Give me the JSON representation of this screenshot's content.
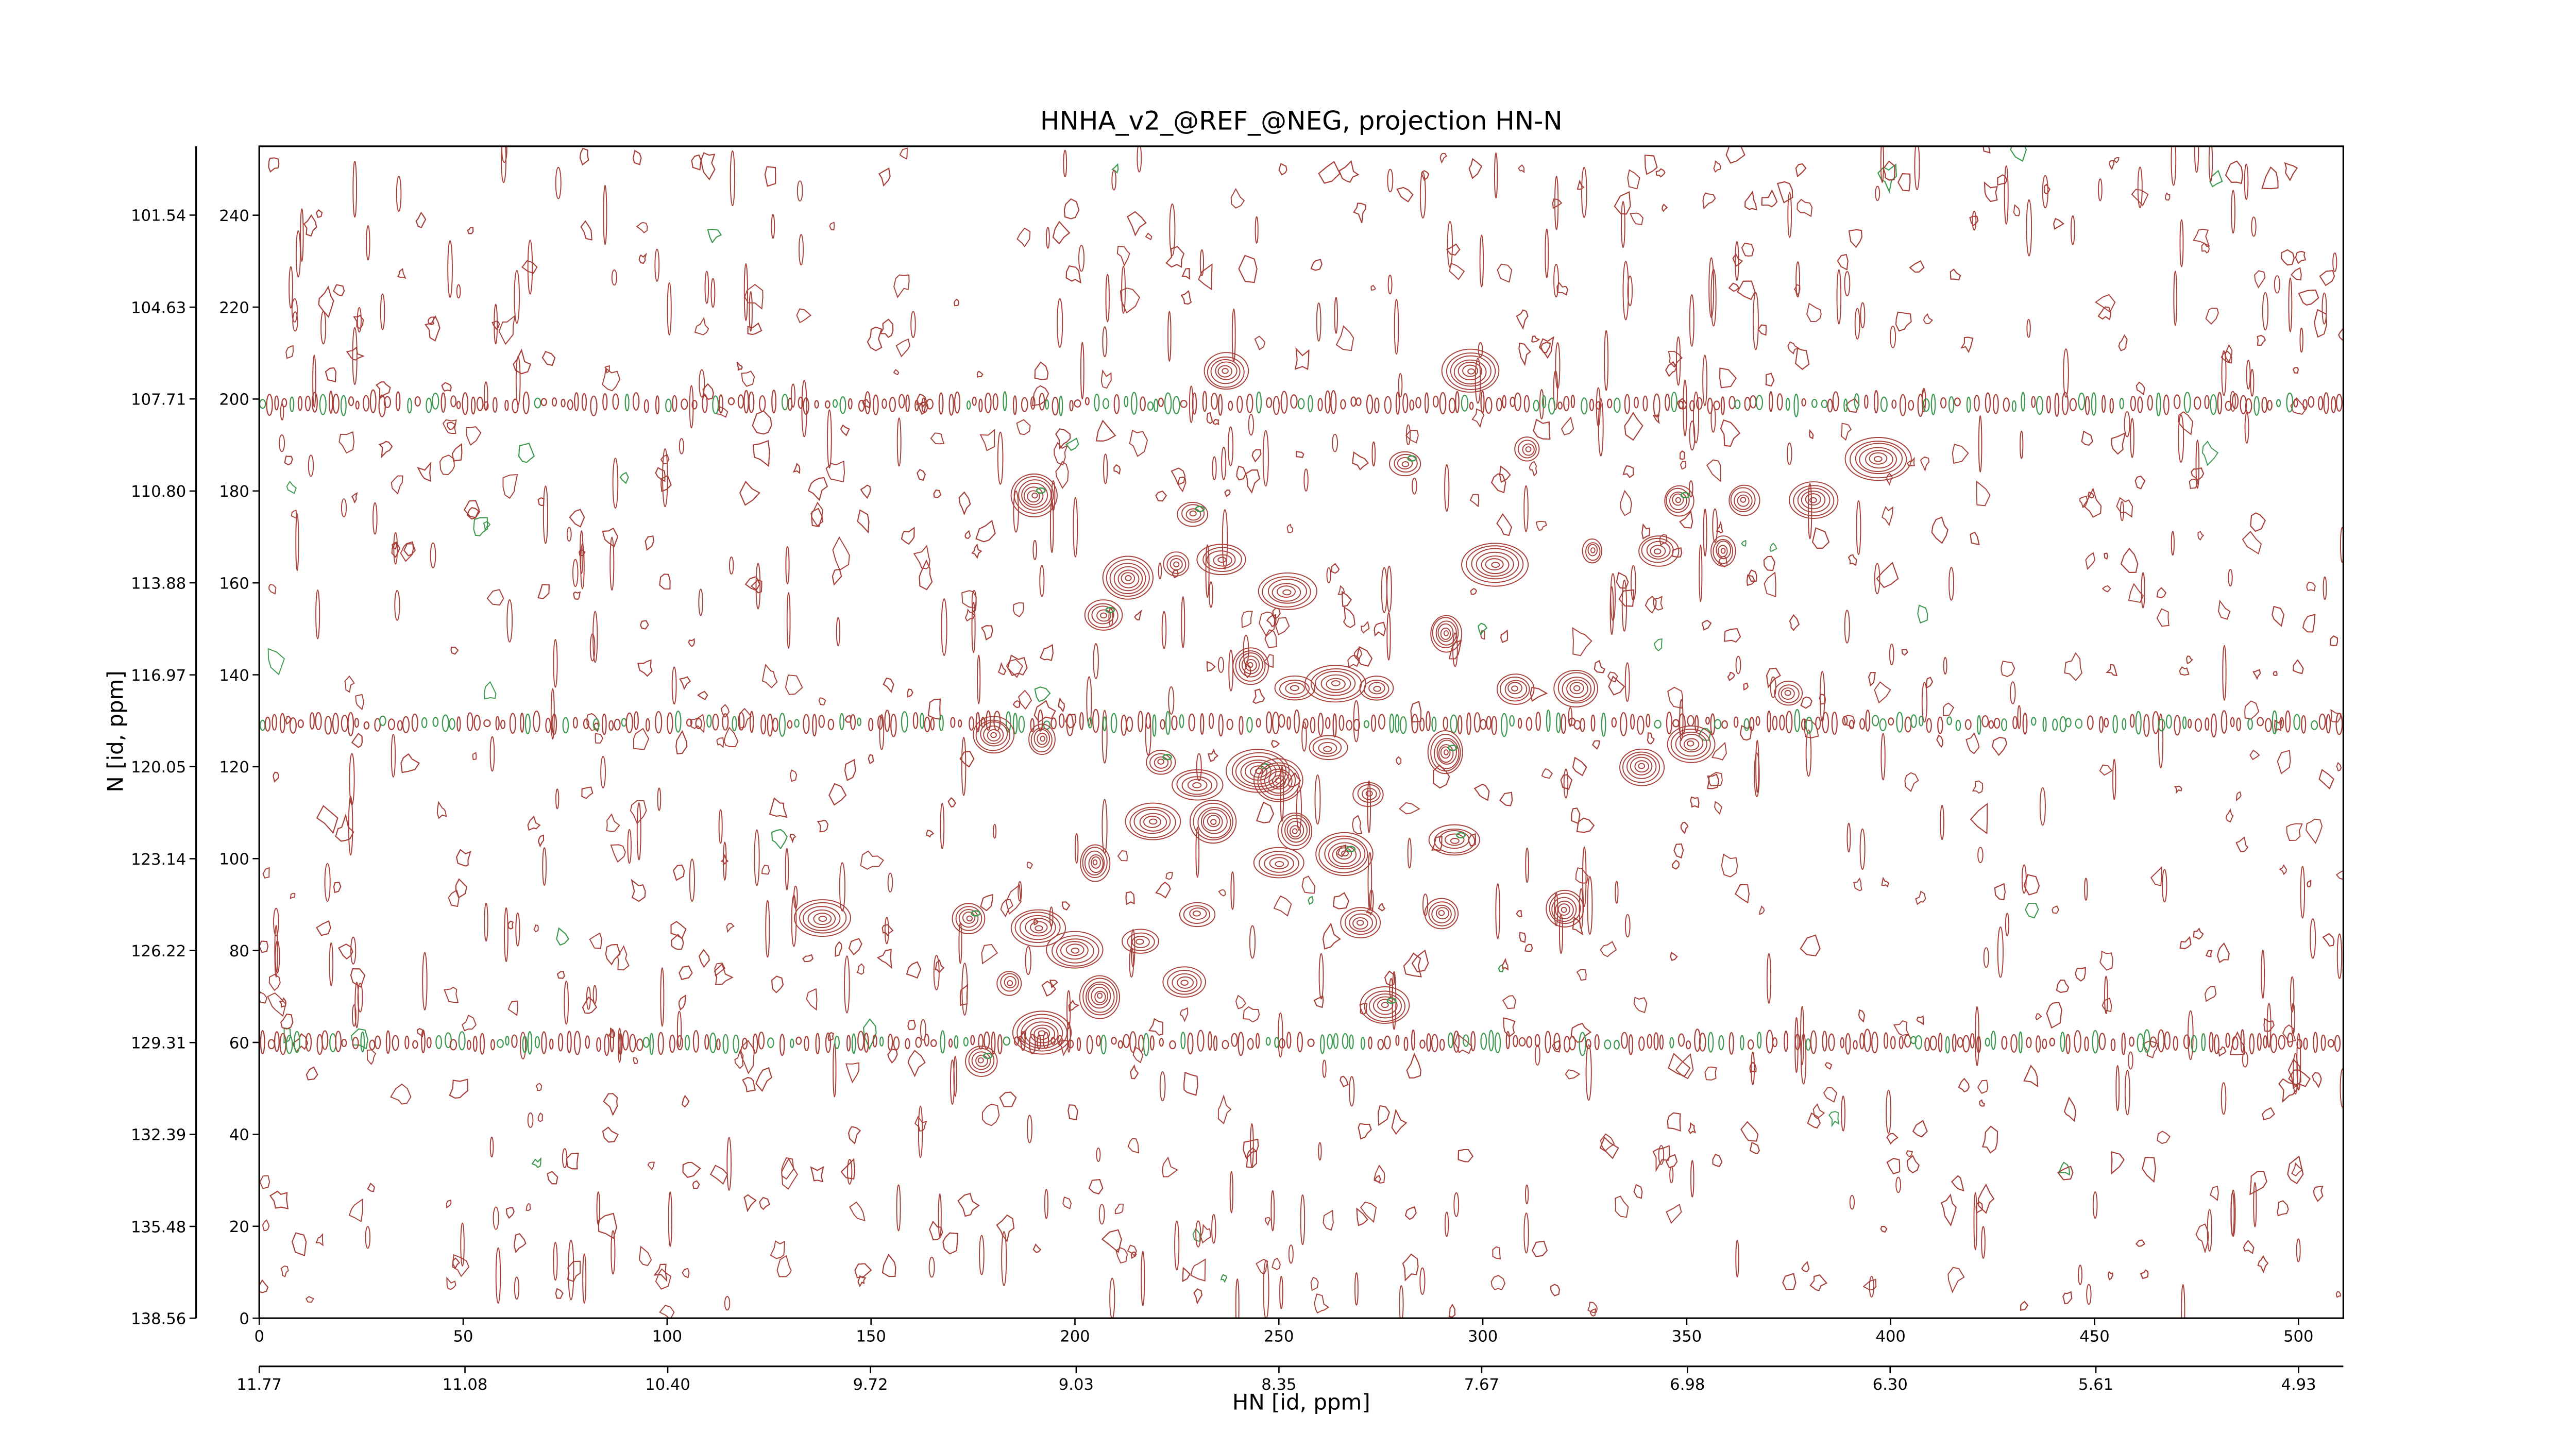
{
  "chart_data": {
    "type": "contour",
    "title": "HNHA_v2_@REF_@NEG, projection HN-N",
    "xlabel": "HN [id, ppm]",
    "ylabel": "N [id, ppm]",
    "xlim": [
      0,
      511
    ],
    "ylim": [
      0,
      255
    ],
    "xticks": [
      0,
      50,
      100,
      150,
      200,
      250,
      300,
      350,
      400,
      450,
      500
    ],
    "yticks": [
      0,
      20,
      40,
      60,
      80,
      100,
      120,
      140,
      160,
      180,
      200,
      220,
      240
    ],
    "x2lim": [
      11.77,
      4.78
    ],
    "x2ticks": [
      11.77,
      11.08,
      {
        "value": 10.4,
        "label": "10.40"
      },
      9.72,
      9.03,
      8.35,
      7.67,
      6.98,
      {
        "value": 6.3,
        "label": "6.30"
      },
      5.61,
      4.93
    ],
    "y2lim": [
      138.56,
      99.23
    ],
    "y2ticks": [
      138.56,
      135.48,
      132.39,
      129.31,
      126.22,
      123.14,
      120.05,
      116.97,
      113.88,
      {
        "value": 110.8,
        "label": "110.80"
      },
      107.71,
      104.63,
      101.54
    ],
    "colors": {
      "positive": "#a8403a",
      "negative": "#3d9a50"
    },
    "ridges": [
      60,
      129.5,
      199
    ],
    "peaks": [
      {
        "x": 190,
        "y": 179
      },
      {
        "x": 213,
        "y": 161
      },
      {
        "x": 225,
        "y": 164
      },
      {
        "x": 236,
        "y": 165
      },
      {
        "x": 252,
        "y": 158
      },
      {
        "x": 229,
        "y": 175
      },
      {
        "x": 207,
        "y": 153
      },
      {
        "x": 237,
        "y": 206
      },
      {
        "x": 297,
        "y": 206
      },
      {
        "x": 281,
        "y": 186
      },
      {
        "x": 243,
        "y": 142
      },
      {
        "x": 254,
        "y": 137
      },
      {
        "x": 264,
        "y": 138
      },
      {
        "x": 274,
        "y": 137
      },
      {
        "x": 180,
        "y": 127
      },
      {
        "x": 192,
        "y": 126
      },
      {
        "x": 221,
        "y": 121
      },
      {
        "x": 245,
        "y": 119
      },
      {
        "x": 262,
        "y": 124
      },
      {
        "x": 291,
        "y": 123
      },
      {
        "x": 308,
        "y": 137
      },
      {
        "x": 323,
        "y": 137
      },
      {
        "x": 339,
        "y": 120
      },
      {
        "x": 351,
        "y": 125
      },
      {
        "x": 375,
        "y": 136
      },
      {
        "x": 230,
        "y": 116
      },
      {
        "x": 219,
        "y": 108
      },
      {
        "x": 234,
        "y": 108
      },
      {
        "x": 250,
        "y": 117
      },
      {
        "x": 272,
        "y": 114
      },
      {
        "x": 254,
        "y": 106
      },
      {
        "x": 266,
        "y": 101
      },
      {
        "x": 250,
        "y": 99
      },
      {
        "x": 293,
        "y": 104
      },
      {
        "x": 205,
        "y": 99
      },
      {
        "x": 230,
        "y": 88
      },
      {
        "x": 270,
        "y": 86
      },
      {
        "x": 290,
        "y": 88
      },
      {
        "x": 320,
        "y": 89
      },
      {
        "x": 138,
        "y": 87
      },
      {
        "x": 174,
        "y": 87
      },
      {
        "x": 191,
        "y": 85
      },
      {
        "x": 200,
        "y": 80
      },
      {
        "x": 216,
        "y": 82
      },
      {
        "x": 184,
        "y": 73
      },
      {
        "x": 206,
        "y": 70
      },
      {
        "x": 227,
        "y": 73
      },
      {
        "x": 276,
        "y": 68
      },
      {
        "x": 192,
        "y": 62
      },
      {
        "x": 177,
        "y": 56
      },
      {
        "x": 291,
        "y": 149
      },
      {
        "x": 303,
        "y": 164
      },
      {
        "x": 311,
        "y": 189
      },
      {
        "x": 348,
        "y": 178
      },
      {
        "x": 364,
        "y": 178
      },
      {
        "x": 381,
        "y": 178
      },
      {
        "x": 397,
        "y": 187
      },
      {
        "x": 327,
        "y": 167
      },
      {
        "x": 343,
        "y": 167
      },
      {
        "x": 359,
        "y": 167
      }
    ]
  }
}
